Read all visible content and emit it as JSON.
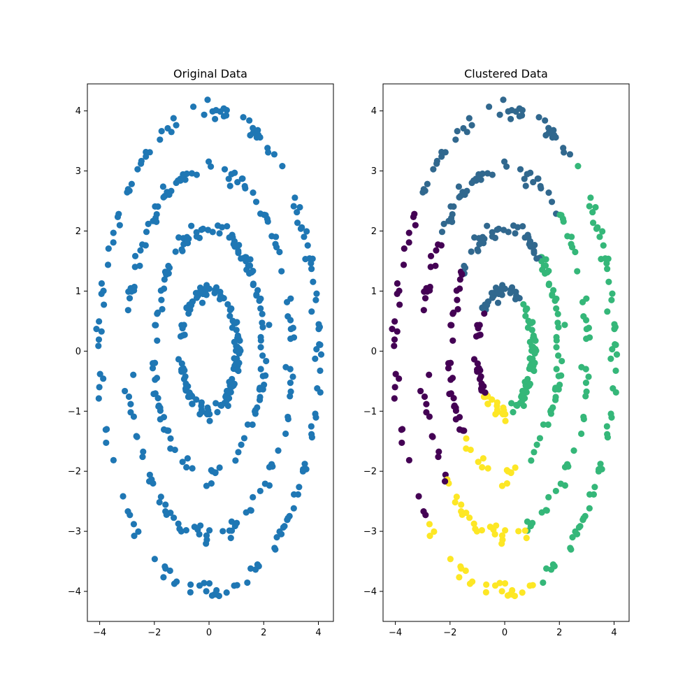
{
  "chart_data": [
    {
      "type": "scatter",
      "title": "Original Data",
      "xlim": [
        -4.45,
        4.55
      ],
      "ylim": [
        -4.5,
        4.45
      ],
      "xticks": [
        -4,
        -2,
        0,
        2,
        4
      ],
      "yticks": [
        -4,
        -3,
        -2,
        -1,
        0,
        1,
        2,
        3,
        4
      ],
      "xtick_labels": [
        "−4",
        "−2",
        "0",
        "2",
        "4"
      ],
      "ytick_labels": [
        "−4",
        "−3",
        "−2",
        "−1",
        "0",
        "1",
        "2",
        "3",
        "4"
      ],
      "grid": false,
      "color": "#1f77b4",
      "rings": [
        {
          "a": 1.0,
          "b": 1.0,
          "scale": "x-ellipse",
          "n": 130
        },
        {
          "a": 1.9,
          "b": 2.0,
          "n": 130
        },
        {
          "a": 2.9,
          "b": 3.0,
          "n": 130
        },
        {
          "a": 4.0,
          "b": 4.0,
          "n": 150
        }
      ],
      "ring_semi_axes": [
        [
          1.05,
          1.0
        ],
        [
          2.0,
          2.05
        ],
        [
          3.0,
          3.05
        ],
        [
          4.0,
          4.0
        ]
      ],
      "noise": 0.08
    },
    {
      "type": "scatter",
      "title": "Clustered Data",
      "xlim": [
        -4.45,
        4.55
      ],
      "ylim": [
        -4.5,
        4.45
      ],
      "xticks": [
        -4,
        -2,
        0,
        2,
        4
      ],
      "yticks": [
        -4,
        -3,
        -2,
        -1,
        0,
        1,
        2,
        3,
        4
      ],
      "xtick_labels": [
        "−4",
        "−2",
        "0",
        "2",
        "4"
      ],
      "ytick_labels": [
        "−4",
        "−3",
        "−2",
        "−1",
        "0",
        "1",
        "2",
        "3",
        "4"
      ],
      "grid": false,
      "clusters": [
        {
          "id": 0,
          "color": "#440154",
          "region": "left"
        },
        {
          "id": 1,
          "color": "#31688e",
          "region": "top"
        },
        {
          "id": 2,
          "color": "#35b779",
          "region": "right"
        },
        {
          "id": 3,
          "color": "#fde725",
          "region": "bottom"
        }
      ]
    }
  ]
}
